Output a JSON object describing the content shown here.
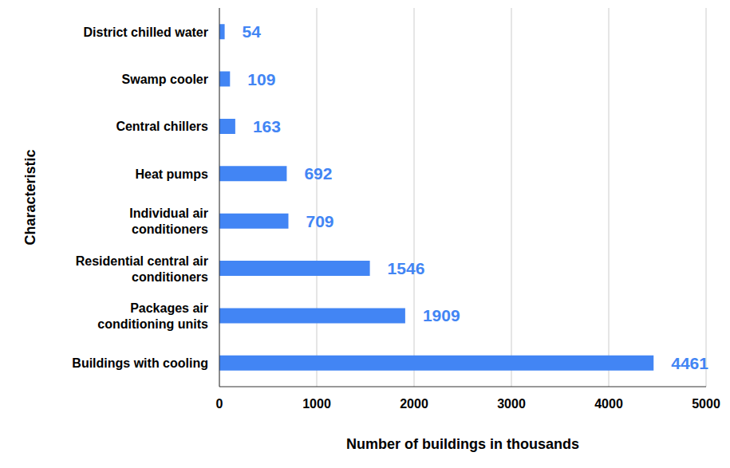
{
  "chart_data": {
    "type": "bar",
    "orientation": "horizontal",
    "categories": [
      "District chilled water",
      "Swamp cooler",
      "Central chillers",
      "Heat pumps",
      "Individual air conditioners",
      "Residential central air conditioners",
      "Packages air conditioning units",
      "Buildings with cooling"
    ],
    "values": [
      54,
      109,
      163,
      692,
      709,
      1546,
      1909,
      4461
    ],
    "color": "#4285f4",
    "xlim": [
      0,
      5000
    ],
    "xticks": [
      0,
      1000,
      2000,
      3000,
      4000,
      5000
    ],
    "grid": true,
    "data_labels": true,
    "x_label": "Number of buildings in thousands",
    "y_label": "Characteristic"
  }
}
